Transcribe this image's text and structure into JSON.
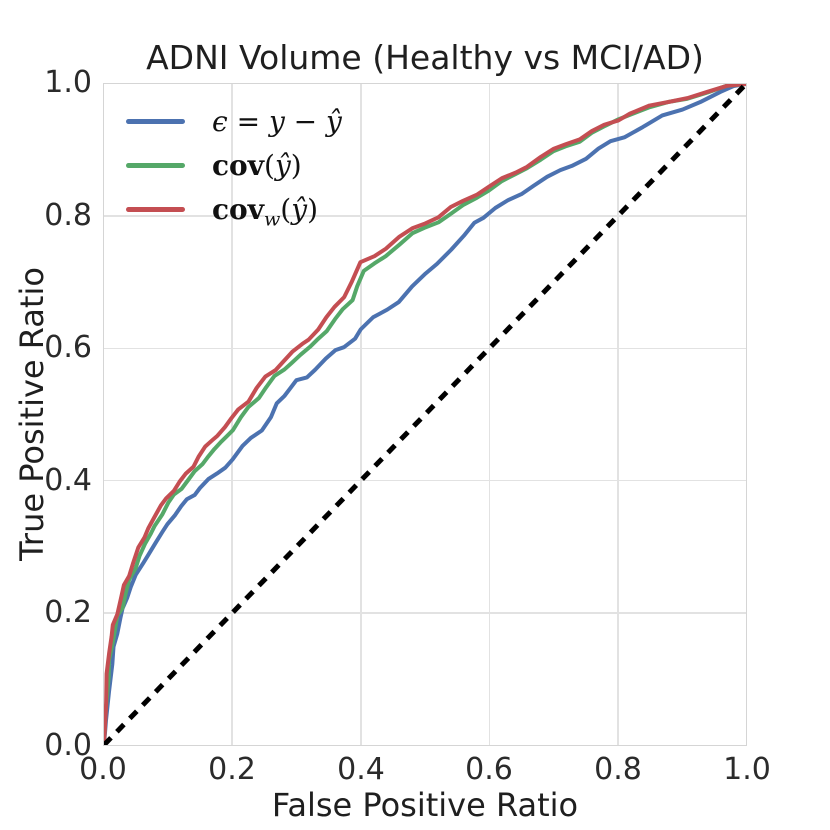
{
  "chart_data": {
    "type": "line",
    "title": "ADNI Volume (Healthy vs MCI/AD)",
    "xlabel": "False Positive Ratio",
    "ylabel": "True Positive Ratio",
    "xlim": [
      0.0,
      1.0
    ],
    "ylim": [
      0.0,
      1.0
    ],
    "xticks": [
      "0.0",
      "0.2",
      "0.4",
      "0.6",
      "0.8",
      "1.0"
    ],
    "yticks": [
      "0.0",
      "0.2",
      "0.4",
      "0.6",
      "0.8",
      "1.0"
    ],
    "grid": true,
    "colors": {
      "blue": "#4C72B0",
      "green": "#55A868",
      "red": "#C44E52",
      "reference": "#000000",
      "grid": "#e2e2e2"
    },
    "legend": {
      "position": "upper-left",
      "frame": false,
      "items": [
        {
          "name": "residual-epsilon",
          "color": "#4C72B0",
          "segments": [
            {
              "text": "ϵ = y − ŷ",
              "italic": true,
              "bold": false,
              "sub": false
            }
          ]
        },
        {
          "name": "cov",
          "color": "#55A868",
          "segments": [
            {
              "text": "cov",
              "italic": false,
              "bold": true,
              "sub": false
            },
            {
              "text": "(",
              "italic": false,
              "bold": false,
              "sub": false
            },
            {
              "text": "ŷ",
              "italic": true,
              "bold": false,
              "sub": false
            },
            {
              "text": ")",
              "italic": false,
              "bold": false,
              "sub": false
            }
          ]
        },
        {
          "name": "cov-weighted",
          "color": "#C44E52",
          "segments": [
            {
              "text": "cov",
              "italic": false,
              "bold": true,
              "sub": false
            },
            {
              "text": "w",
              "italic": true,
              "bold": false,
              "sub": true
            },
            {
              "text": "(",
              "italic": false,
              "bold": false,
              "sub": false
            },
            {
              "text": "ŷ",
              "italic": true,
              "bold": false,
              "sub": false
            },
            {
              "text": ")",
              "italic": false,
              "bold": false,
              "sub": false
            }
          ]
        }
      ]
    },
    "series": [
      {
        "name": "epsilon-roc",
        "label": "ϵ = y − ŷ",
        "color": "#4C72B0",
        "linewidth": 4,
        "points": [
          [
            0,
            0
          ],
          [
            0.004,
            0.04
          ],
          [
            0.008,
            0.08
          ],
          [
            0.012,
            0.12
          ],
          [
            0.016,
            0.15
          ],
          [
            0.02,
            0.17
          ],
          [
            0.025,
            0.19
          ],
          [
            0.03,
            0.205
          ],
          [
            0.035,
            0.225
          ],
          [
            0.042,
            0.24
          ],
          [
            0.05,
            0.255
          ],
          [
            0.06,
            0.275
          ],
          [
            0.07,
            0.29
          ],
          [
            0.08,
            0.305
          ],
          [
            0.09,
            0.32
          ],
          [
            0.1,
            0.335
          ],
          [
            0.11,
            0.35
          ],
          [
            0.12,
            0.36
          ],
          [
            0.13,
            0.37
          ],
          [
            0.14,
            0.38
          ],
          [
            0.15,
            0.39
          ],
          [
            0.163,
            0.4
          ],
          [
            0.175,
            0.41
          ],
          [
            0.19,
            0.422
          ],
          [
            0.2,
            0.432
          ],
          [
            0.215,
            0.45
          ],
          [
            0.23,
            0.465
          ],
          [
            0.245,
            0.478
          ],
          [
            0.26,
            0.495
          ],
          [
            0.27,
            0.515
          ],
          [
            0.28,
            0.53
          ],
          [
            0.29,
            0.54
          ],
          [
            0.3,
            0.55
          ],
          [
            0.315,
            0.555
          ],
          [
            0.33,
            0.57
          ],
          [
            0.345,
            0.585
          ],
          [
            0.36,
            0.595
          ],
          [
            0.375,
            0.602
          ],
          [
            0.39,
            0.617
          ],
          [
            0.4,
            0.628
          ],
          [
            0.42,
            0.645
          ],
          [
            0.44,
            0.66
          ],
          [
            0.46,
            0.672
          ],
          [
            0.48,
            0.692
          ],
          [
            0.5,
            0.712
          ],
          [
            0.52,
            0.73
          ],
          [
            0.54,
            0.75
          ],
          [
            0.56,
            0.768
          ],
          [
            0.578,
            0.79
          ],
          [
            0.59,
            0.8
          ],
          [
            0.61,
            0.812
          ],
          [
            0.63,
            0.822
          ],
          [
            0.65,
            0.835
          ],
          [
            0.67,
            0.848
          ],
          [
            0.69,
            0.858
          ],
          [
            0.71,
            0.868
          ],
          [
            0.73,
            0.878
          ],
          [
            0.75,
            0.888
          ],
          [
            0.77,
            0.9
          ],
          [
            0.79,
            0.913
          ],
          [
            0.81,
            0.922
          ],
          [
            0.84,
            0.935
          ],
          [
            0.87,
            0.95
          ],
          [
            0.9,
            0.962
          ],
          [
            0.93,
            0.975
          ],
          [
            0.96,
            0.987
          ],
          [
            0.98,
            0.995
          ],
          [
            1,
            1
          ]
        ]
      },
      {
        "name": "cov-roc",
        "label": "cov(ŷ)",
        "color": "#55A868",
        "linewidth": 4,
        "points": [
          [
            0,
            0
          ],
          [
            0.003,
            0.05
          ],
          [
            0.006,
            0.1
          ],
          [
            0.009,
            0.13
          ],
          [
            0.013,
            0.155
          ],
          [
            0.017,
            0.175
          ],
          [
            0.022,
            0.195
          ],
          [
            0.028,
            0.21
          ],
          [
            0.034,
            0.23
          ],
          [
            0.04,
            0.248
          ],
          [
            0.048,
            0.268
          ],
          [
            0.056,
            0.288
          ],
          [
            0.064,
            0.303
          ],
          [
            0.072,
            0.318
          ],
          [
            0.08,
            0.333
          ],
          [
            0.09,
            0.35
          ],
          [
            0.1,
            0.365
          ],
          [
            0.11,
            0.378
          ],
          [
            0.12,
            0.39
          ],
          [
            0.132,
            0.402
          ],
          [
            0.142,
            0.412
          ],
          [
            0.152,
            0.425
          ],
          [
            0.162,
            0.437
          ],
          [
            0.172,
            0.447
          ],
          [
            0.182,
            0.457
          ],
          [
            0.192,
            0.468
          ],
          [
            0.2,
            0.478
          ],
          [
            0.213,
            0.494
          ],
          [
            0.226,
            0.51
          ],
          [
            0.24,
            0.527
          ],
          [
            0.253,
            0.542
          ],
          [
            0.266,
            0.556
          ],
          [
            0.28,
            0.568
          ],
          [
            0.293,
            0.58
          ],
          [
            0.306,
            0.59
          ],
          [
            0.32,
            0.6
          ],
          [
            0.333,
            0.614
          ],
          [
            0.346,
            0.628
          ],
          [
            0.36,
            0.643
          ],
          [
            0.373,
            0.658
          ],
          [
            0.386,
            0.675
          ],
          [
            0.395,
            0.695
          ],
          [
            0.405,
            0.715
          ],
          [
            0.42,
            0.728
          ],
          [
            0.44,
            0.742
          ],
          [
            0.46,
            0.757
          ],
          [
            0.48,
            0.772
          ],
          [
            0.5,
            0.783
          ],
          [
            0.52,
            0.793
          ],
          [
            0.54,
            0.802
          ],
          [
            0.56,
            0.815
          ],
          [
            0.58,
            0.83
          ],
          [
            0.6,
            0.84
          ],
          [
            0.62,
            0.851
          ],
          [
            0.64,
            0.863
          ],
          [
            0.66,
            0.875
          ],
          [
            0.68,
            0.886
          ],
          [
            0.7,
            0.896
          ],
          [
            0.72,
            0.906
          ],
          [
            0.74,
            0.915
          ],
          [
            0.76,
            0.925
          ],
          [
            0.78,
            0.934
          ],
          [
            0.8,
            0.948
          ],
          [
            0.82,
            0.955
          ],
          [
            0.85,
            0.963
          ],
          [
            0.88,
            0.972
          ],
          [
            0.91,
            0.98
          ],
          [
            0.94,
            0.988
          ],
          [
            0.97,
            0.995
          ],
          [
            1,
            1
          ]
        ]
      },
      {
        "name": "cov-w-roc",
        "label": "cov_w(ŷ)",
        "color": "#C44E52",
        "linewidth": 4,
        "points": [
          [
            0,
            0
          ],
          [
            0.002,
            0.06
          ],
          [
            0.005,
            0.11
          ],
          [
            0.008,
            0.14
          ],
          [
            0.011,
            0.162
          ],
          [
            0.015,
            0.182
          ],
          [
            0.02,
            0.2
          ],
          [
            0.026,
            0.22
          ],
          [
            0.032,
            0.24
          ],
          [
            0.038,
            0.257
          ],
          [
            0.046,
            0.277
          ],
          [
            0.054,
            0.297
          ],
          [
            0.062,
            0.313
          ],
          [
            0.07,
            0.33
          ],
          [
            0.078,
            0.345
          ],
          [
            0.088,
            0.36
          ],
          [
            0.098,
            0.373
          ],
          [
            0.108,
            0.387
          ],
          [
            0.118,
            0.398
          ],
          [
            0.128,
            0.408
          ],
          [
            0.138,
            0.422
          ],
          [
            0.148,
            0.438
          ],
          [
            0.158,
            0.45
          ],
          [
            0.168,
            0.46
          ],
          [
            0.178,
            0.47
          ],
          [
            0.188,
            0.482
          ],
          [
            0.198,
            0.492
          ],
          [
            0.21,
            0.507
          ],
          [
            0.224,
            0.522
          ],
          [
            0.238,
            0.54
          ],
          [
            0.252,
            0.555
          ],
          [
            0.266,
            0.568
          ],
          [
            0.28,
            0.582
          ],
          [
            0.294,
            0.594
          ],
          [
            0.308,
            0.605
          ],
          [
            0.32,
            0.615
          ],
          [
            0.333,
            0.63
          ],
          [
            0.346,
            0.645
          ],
          [
            0.36,
            0.662
          ],
          [
            0.373,
            0.68
          ],
          [
            0.386,
            0.7
          ],
          [
            0.4,
            0.728
          ],
          [
            0.42,
            0.74
          ],
          [
            0.44,
            0.753
          ],
          [
            0.46,
            0.768
          ],
          [
            0.48,
            0.78
          ],
          [
            0.5,
            0.79
          ],
          [
            0.52,
            0.8
          ],
          [
            0.54,
            0.812
          ],
          [
            0.56,
            0.822
          ],
          [
            0.58,
            0.835
          ],
          [
            0.6,
            0.845
          ],
          [
            0.62,
            0.855
          ],
          [
            0.64,
            0.866
          ],
          [
            0.66,
            0.877
          ],
          [
            0.68,
            0.889
          ],
          [
            0.7,
            0.9
          ],
          [
            0.72,
            0.91
          ],
          [
            0.74,
            0.918
          ],
          [
            0.76,
            0.927
          ],
          [
            0.78,
            0.937
          ],
          [
            0.8,
            0.947
          ],
          [
            0.82,
            0.956
          ],
          [
            0.85,
            0.965
          ],
          [
            0.88,
            0.973
          ],
          [
            0.91,
            0.981
          ],
          [
            0.94,
            0.988
          ],
          [
            0.97,
            0.995
          ],
          [
            1,
            1
          ]
        ]
      }
    ],
    "reference_line": {
      "name": "chance-diagonal",
      "color": "#000000",
      "style": "dashed",
      "linewidth": 5,
      "from": [
        0,
        0
      ],
      "to": [
        1,
        1
      ]
    }
  }
}
